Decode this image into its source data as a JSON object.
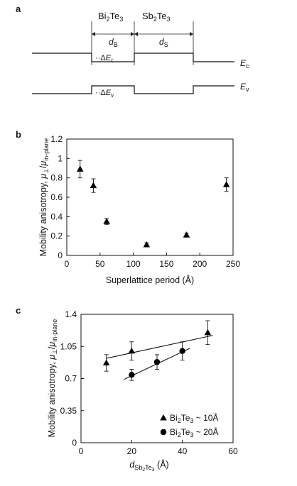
{
  "panel_a": {
    "letter": "a",
    "material_left": "Bi2Te3",
    "material_right": "Sb2Te3",
    "width_left": "dB",
    "width_right": "dS",
    "delta_ec": "ΔEc",
    "delta_ev": "ΔEv",
    "ec_label": "Ec",
    "ev_label": "Ev"
  },
  "panel_b_letter": "b",
  "panel_c_letter": "c",
  "chart_data": [
    {
      "type": "scatter",
      "title": "",
      "xlabel": "Superlattice period (Å)",
      "ylabel": "Mobility anisotropy, μ⊥/μin-plane",
      "xlim": [
        0,
        250
      ],
      "ylim": [
        0,
        1.2
      ],
      "xticks": [
        "0",
        "50",
        "100",
        "150",
        "200",
        "250"
      ],
      "yticks": [
        "0",
        "0.2",
        "0.4",
        "0.6",
        "0.8",
        "1",
        "1.2"
      ],
      "grid": false,
      "series": [
        {
          "marker": "triangle",
          "x": [
            20,
            40,
            60,
            120,
            180,
            240
          ],
          "y": [
            0.89,
            0.72,
            0.35,
            0.11,
            0.21,
            0.73
          ],
          "err": [
            0.09,
            0.07,
            0.03,
            0.02,
            0.02,
            0.07
          ]
        }
      ]
    },
    {
      "type": "scatter",
      "title": "",
      "xlabel": "dSb2Te3 (Å)",
      "ylabel": "Mobility anisotropy, μ⊥/μin-plane",
      "xlim": [
        0,
        60
      ],
      "ylim": [
        0,
        1.4
      ],
      "xticks": [
        "0",
        "20",
        "40",
        "60"
      ],
      "yticks": [
        "0",
        "0.35",
        "0.7",
        "1.05",
        "1.4"
      ],
      "grid": false,
      "legend": "bottom-right",
      "series": [
        {
          "name": "Bi2Te3 ~ 10Å",
          "marker": "triangle",
          "x": [
            10,
            20,
            50
          ],
          "y": [
            0.87,
            1.0,
            1.2
          ],
          "err": [
            0.09,
            0.1,
            0.13
          ],
          "fit": [
            [
              10,
              0.92
            ],
            [
              52,
              1.17
            ]
          ]
        },
        {
          "name": "Bi2Te3 ~ 20Å",
          "marker": "circle",
          "x": [
            20,
            30,
            40
          ],
          "y": [
            0.74,
            0.88,
            1.0
          ],
          "err": [
            0.06,
            0.08,
            0.1
          ],
          "fit": [
            [
              17,
              0.69
            ],
            [
              43,
              1.03
            ]
          ]
        }
      ]
    }
  ]
}
